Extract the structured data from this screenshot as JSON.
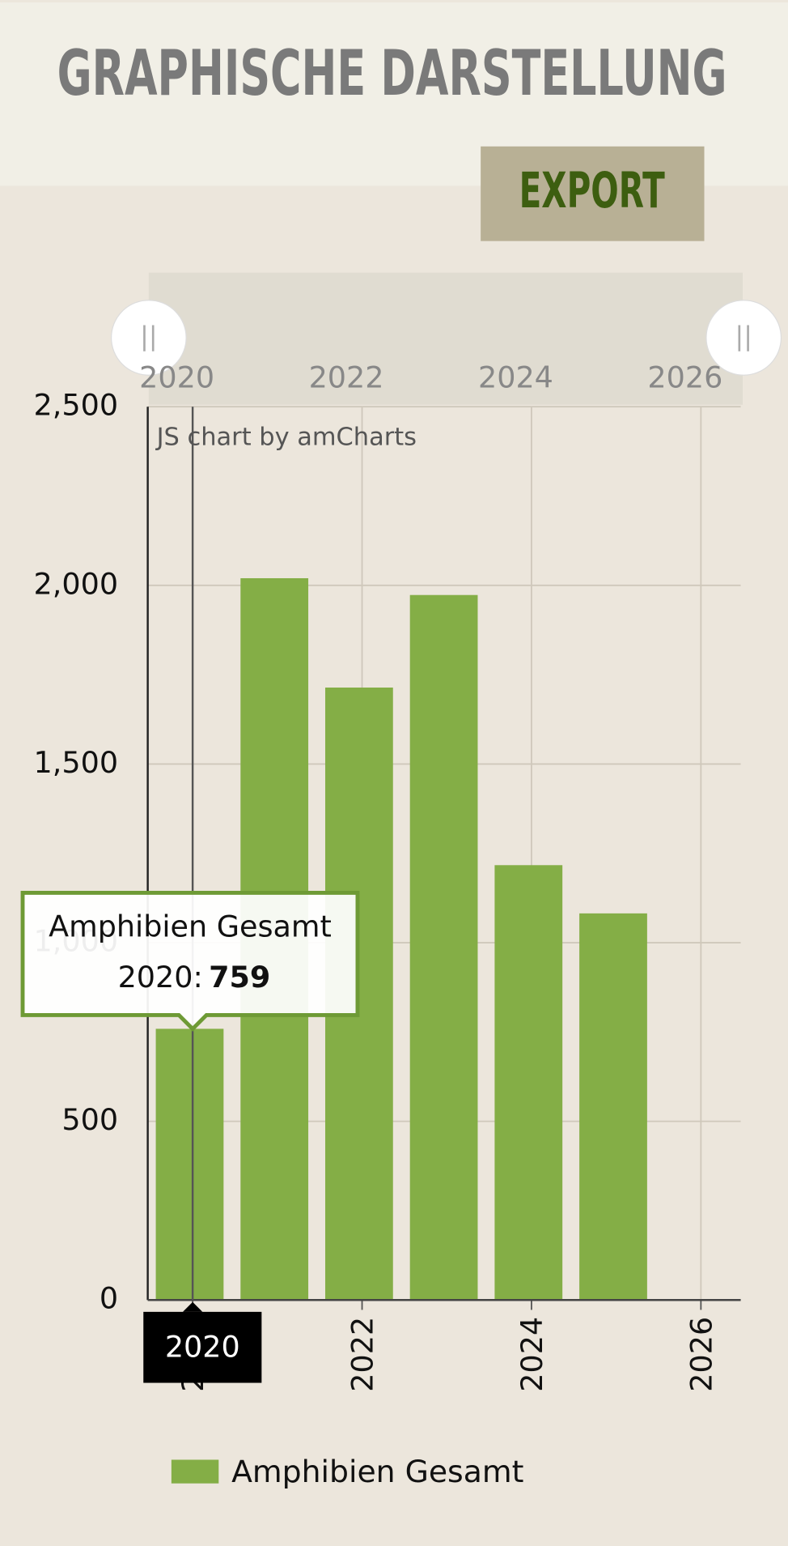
{
  "header": {
    "title": "GRAPHISCHE DARSTELLUNG",
    "export_button": "EXPORT"
  },
  "chart_data": {
    "type": "bar",
    "credit": "JS chart by amCharts",
    "x": [
      2020,
      2021,
      2022,
      2023,
      2024,
      2025
    ],
    "series": [
      {
        "name": "Amphibien Gesamt",
        "color": "#84ae46",
        "values": [
          759,
          2020,
          1714,
          1973,
          1217,
          1082
        ]
      }
    ],
    "xlim": [
      2019.47,
      2026.47
    ],
    "xticks": [
      2020,
      2022,
      2024,
      2026
    ],
    "ylim": [
      0,
      2500
    ],
    "yticks": [
      0,
      500,
      {
        "value": 1000,
        "label": "1,000"
      },
      {
        "value": 1500,
        "label": "1,500"
      },
      {
        "value": 2000,
        "label": "2,000"
      },
      {
        "value": 2500,
        "label": "2,500"
      }
    ],
    "grid": true,
    "legend": "bottom",
    "tooltip": {
      "label": "2020:"
    }
  }
}
